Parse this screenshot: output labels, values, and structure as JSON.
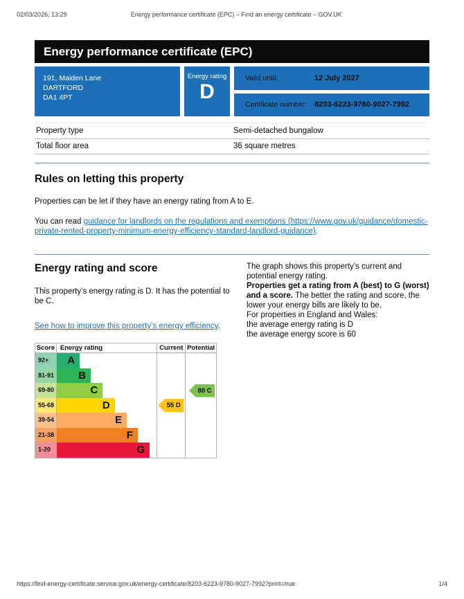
{
  "print_header": {
    "datetime": "02/03/2026, 13:29",
    "title": "Energy performance certificate (EPC) – Find an energy certificate – GOV.UK"
  },
  "banner": {
    "title": "Energy performance certificate (EPC)"
  },
  "summary": {
    "address_lines": [
      "191, Maiden Lane",
      "DARTFORD",
      "DA1 4PT"
    ],
    "energy_rating_label": "Energy rating",
    "energy_rating": "D",
    "valid_until_label": "Valid until:",
    "valid_until": "12 July 2027",
    "certificate_number_label": "Certificate number:",
    "certificate_number": "8203-6223-9780-9027-7992"
  },
  "property_table": {
    "rows": [
      {
        "label": "Property type",
        "value": "Semi-detached bungalow"
      },
      {
        "label": "Total floor area",
        "value": "36 square metres"
      }
    ]
  },
  "letting_rules": {
    "heading": "Rules on letting this property",
    "paragraph": "Properties can be let if they have an energy rating from A to E.",
    "link_prefix": "You can read ",
    "link_text": "guidance for landlords on the regulations and exemptions (https://www.gov.uk/guidance/domestic-private-rented-property-minimum-energy-efficiency-standard-landlord-guidance)",
    "link_suffix": "."
  },
  "rating_section": {
    "heading": "Energy rating and score",
    "intro": "This property’s energy rating is D. It has the potential to be C.",
    "improve_link": "See how to improve this property’s energy efficiency",
    "improve_suffix": ".",
    "right": {
      "p1": "The graph shows this property’s current and potential energy rating.",
      "p2_bold": "Properties get a rating from A (best) to G (worst) and a score.",
      "p2_rest": " The better the rating and score, the lower your energy bills are likely to be.",
      "p3": "For properties in England and Wales:",
      "p4_lines": [
        "the average energy rating is D",
        "the average energy score is 60"
      ]
    }
  },
  "chart_data": {
    "type": "bar",
    "title": "Energy rating and score (EPC bands)",
    "headers": [
      "Score",
      "Energy rating",
      "Current",
      "Potential"
    ],
    "bands": [
      {
        "score": "92+",
        "letter": "A",
        "bar_color": "#28ad70",
        "score_color": "#8fd1b0",
        "bar_width_pct": 23
      },
      {
        "score": "81-91",
        "letter": "B",
        "bar_color": "#2db456",
        "score_color": "#93d7a4",
        "bar_width_pct": 34
      },
      {
        "score": "69-80",
        "letter": "C",
        "bar_color": "#8dce46",
        "score_color": "#c7e295",
        "bar_width_pct": 46
      },
      {
        "score": "55-68",
        "letter": "D",
        "bar_color": "#ffd500",
        "score_color": "#ffe878",
        "bar_width_pct": 58
      },
      {
        "score": "39-54",
        "letter": "E",
        "bar_color": "#fcaa65",
        "score_color": "#fbc18d",
        "bar_width_pct": 70
      },
      {
        "score": "21-38",
        "letter": "F",
        "bar_color": "#ef8023",
        "score_color": "#f3a263",
        "bar_width_pct": 81
      },
      {
        "score": "1-20",
        "letter": "G",
        "bar_color": "#e9153b",
        "score_color": "#f2909a",
        "bar_width_pct": 93
      }
    ],
    "current": {
      "value": 55,
      "letter": "D",
      "label": "55  D",
      "band_index": 3,
      "color": "#f9c51c"
    },
    "potential": {
      "value": 80,
      "letter": "C",
      "label": "80  C",
      "band_index": 2,
      "color": "#7ec04f"
    }
  },
  "print_footer": {
    "url": "https://find-energy-certificate.service.gov.uk/energy-certificate/8203-6223-9780-9027-7992?print=true",
    "page": "1/4"
  }
}
